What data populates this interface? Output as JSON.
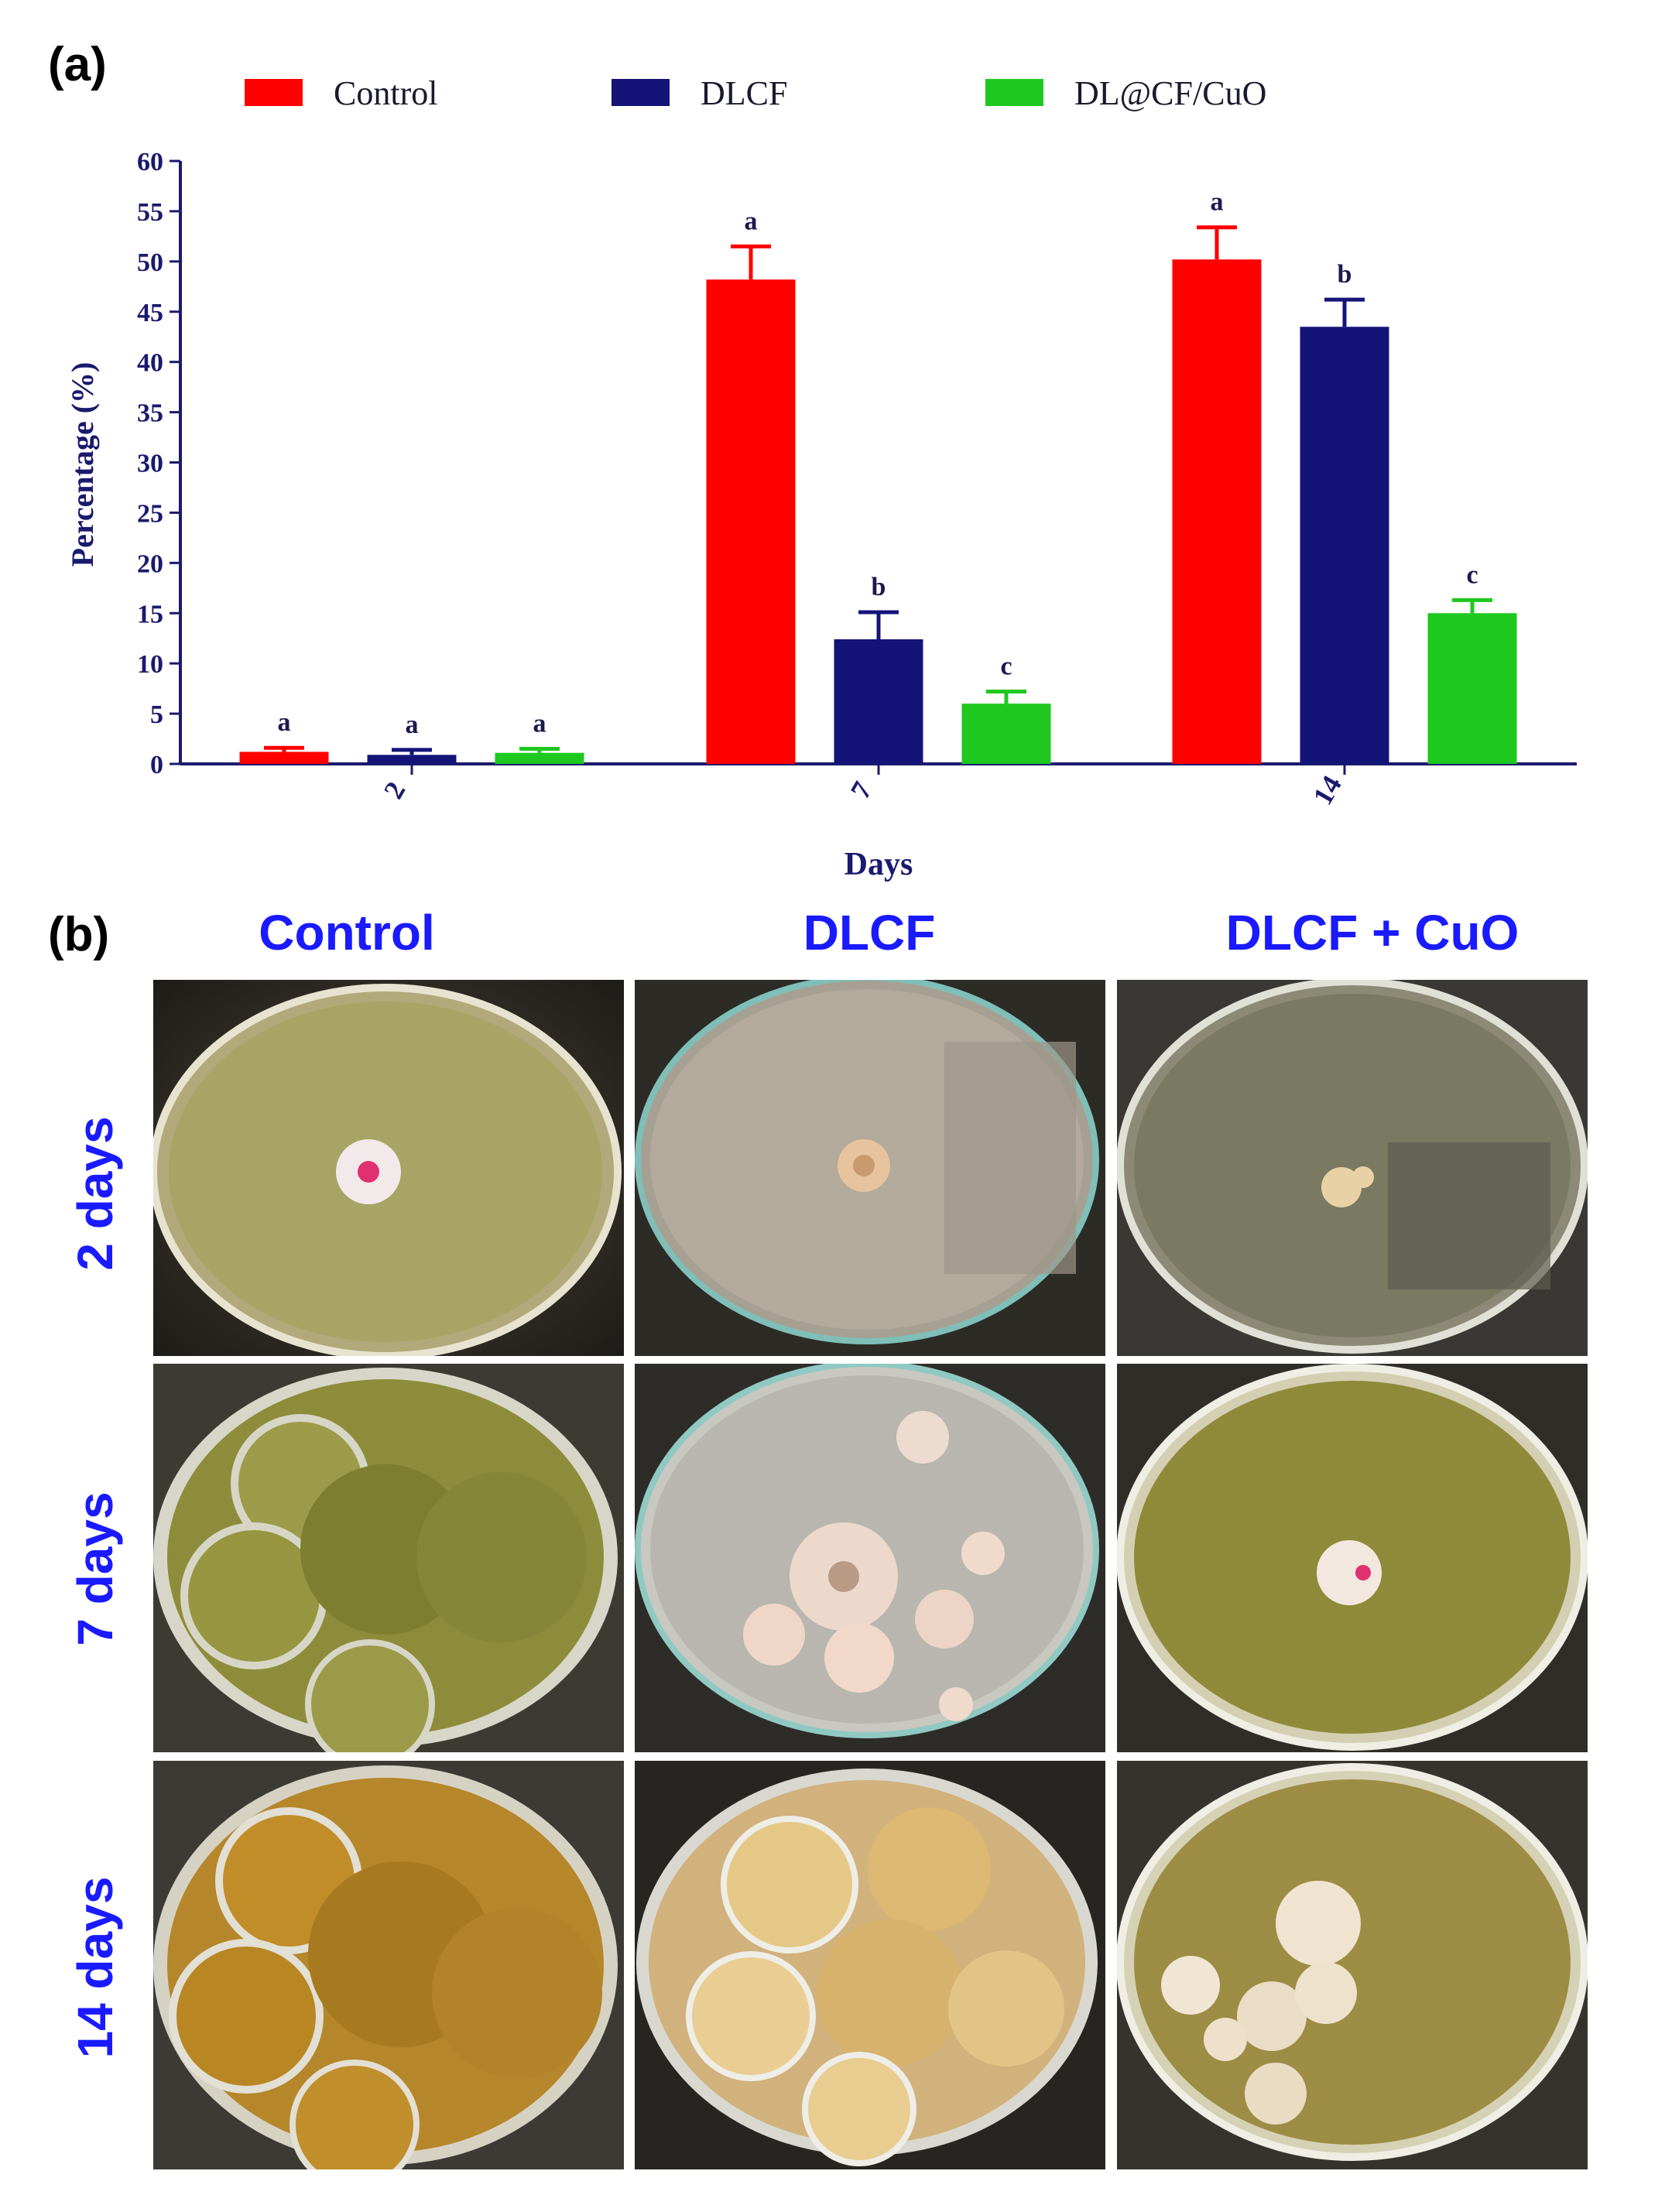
{
  "panel_a_label": "(a)",
  "panel_b_label": "(b)",
  "colors": {
    "Control": "#ff0000",
    "DLCF": "#141478",
    "DL@CF/CuO": "#1fc81f",
    "axis": "#1a1a6e",
    "heading_blue": "#1a1aff"
  },
  "chart_data": {
    "type": "bar",
    "title": "",
    "xlabel": "Days",
    "ylabel": "Percentage (%)",
    "categories": [
      "2",
      "7",
      "14"
    ],
    "ylim": [
      0,
      60
    ],
    "yticks": [
      "0",
      "5",
      "10",
      "15",
      "20",
      "25",
      "30",
      "35",
      "40",
      "45",
      "50",
      "55",
      "60"
    ],
    "grid": false,
    "legend_position": "top",
    "series": [
      {
        "name": "Control",
        "color": "#ff0000",
        "values": [
          1.2,
          48.2,
          50.2
        ],
        "errors": [
          0.4,
          3.3,
          3.2
        ],
        "letters": [
          "a",
          "a",
          "a"
        ]
      },
      {
        "name": "DLCF",
        "color": "#141478",
        "values": [
          0.9,
          12.4,
          43.5
        ],
        "errors": [
          0.5,
          2.7,
          2.7
        ],
        "letters": [
          "a",
          "b",
          "b"
        ]
      },
      {
        "name": "DL@CF/CuO",
        "color": "#1fc81f",
        "values": [
          1.1,
          6.0,
          15.0
        ],
        "errors": [
          0.4,
          1.2,
          1.3
        ],
        "letters": [
          "a",
          "c",
          "c"
        ]
      }
    ]
  },
  "panel_b": {
    "columns": [
      "Control",
      "DLCF",
      "DLCF + CuO"
    ],
    "rows": [
      "2 days",
      "7 days",
      "14 days"
    ]
  }
}
